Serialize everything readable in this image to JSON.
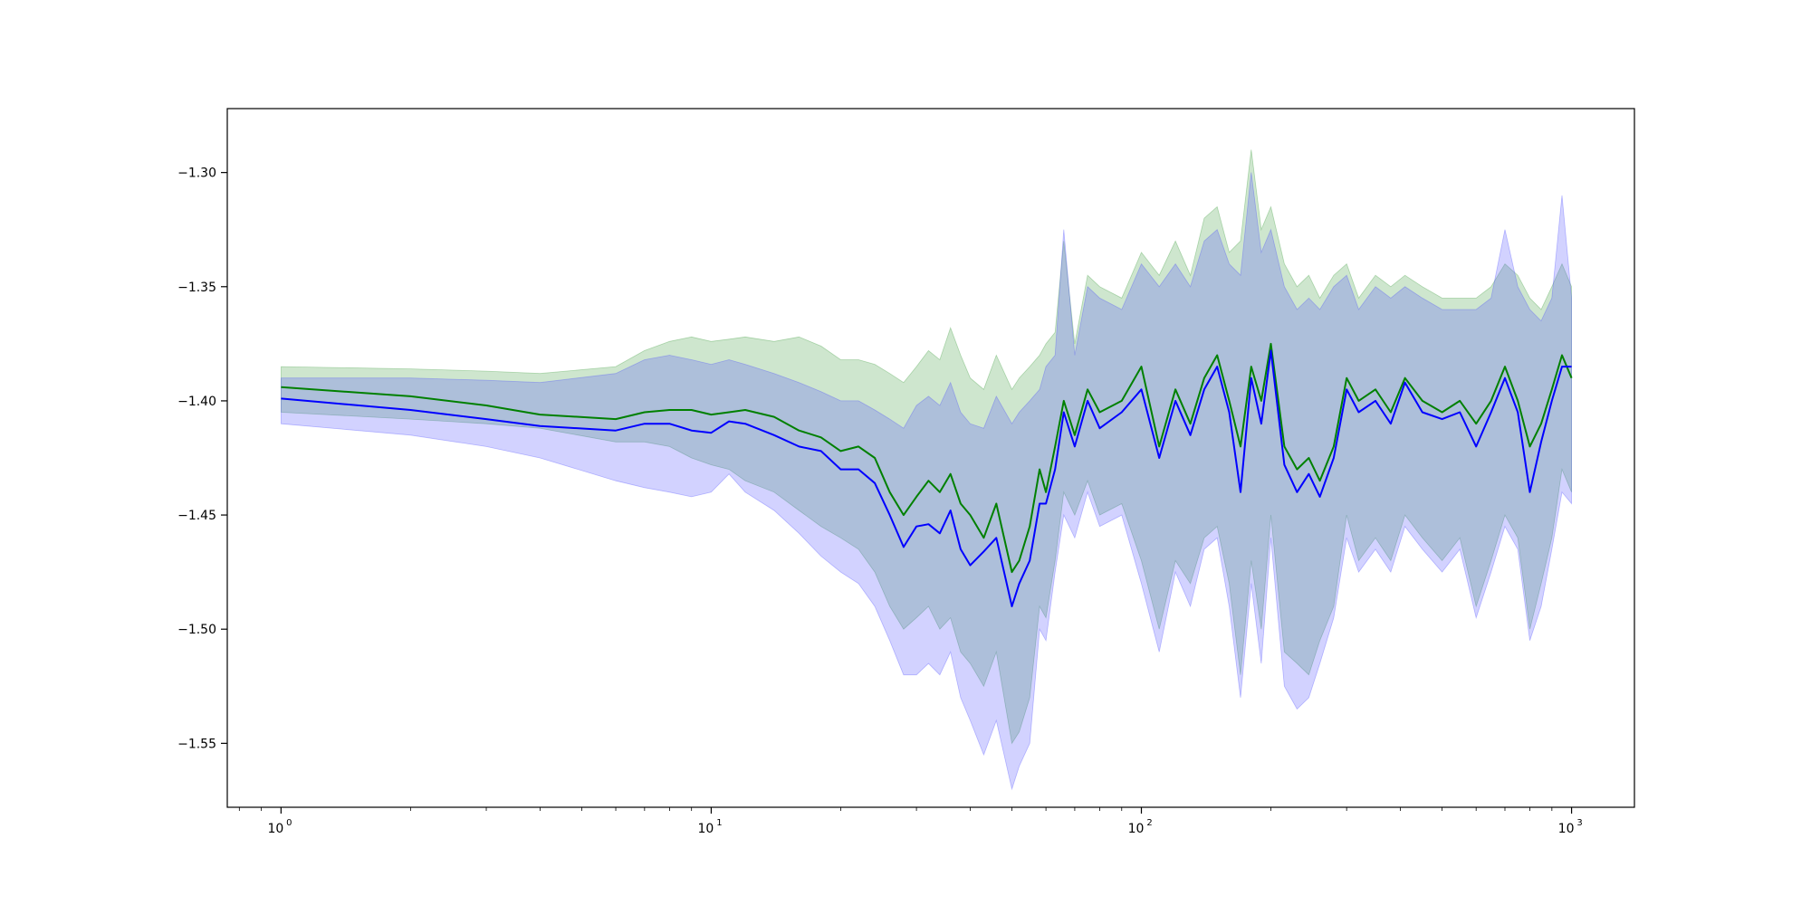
{
  "chart_data": {
    "type": "line",
    "title": "",
    "xlabel": "",
    "ylabel": "",
    "x_scale": "log",
    "xlim": [
      0.75,
      1400
    ],
    "ylim": [
      -1.578,
      -1.272
    ],
    "grid": false,
    "x_ticks": [
      {
        "value": 1,
        "base": "10",
        "exp": "0"
      },
      {
        "value": 10,
        "base": "10",
        "exp": "1"
      },
      {
        "value": 100,
        "base": "10",
        "exp": "2"
      },
      {
        "value": 1000,
        "base": "10",
        "exp": "3"
      }
    ],
    "y_ticks": [
      {
        "value": -1.3,
        "label": "−1.30"
      },
      {
        "value": -1.35,
        "label": "−1.35"
      },
      {
        "value": -1.4,
        "label": "−1.40"
      },
      {
        "value": -1.45,
        "label": "−1.45"
      },
      {
        "value": -1.5,
        "label": "−1.50"
      },
      {
        "value": -1.55,
        "label": "−1.55"
      }
    ],
    "colors": {
      "green_line": "#008000",
      "blue_line": "#0000ff",
      "green_band": "#3a9a3a",
      "blue_band": "#4a4aff"
    },
    "band_opacity": 0.25,
    "series": [
      {
        "color": "green",
        "x": [
          1,
          2,
          3,
          4,
          6,
          7,
          8,
          9,
          10,
          11,
          12,
          14,
          16,
          18,
          20,
          22,
          24,
          26,
          28,
          30,
          32,
          34,
          36,
          38,
          40,
          43,
          46,
          50,
          52,
          55,
          58,
          60,
          63,
          66,
          70,
          75,
          80,
          90,
          100,
          110,
          120,
          130,
          140,
          150,
          160,
          170,
          180,
          190,
          200,
          215,
          230,
          245,
          260,
          280,
          300,
          320,
          350,
          380,
          410,
          450,
          500,
          550,
          600,
          650,
          700,
          750,
          800,
          850,
          900,
          950,
          1000
        ],
        "y": [
          -1.394,
          -1.398,
          -1.402,
          -1.406,
          -1.408,
          -1.405,
          -1.404,
          -1.404,
          -1.406,
          -1.405,
          -1.404,
          -1.407,
          -1.413,
          -1.416,
          -1.422,
          -1.42,
          -1.425,
          -1.44,
          -1.45,
          -1.442,
          -1.435,
          -1.44,
          -1.432,
          -1.445,
          -1.45,
          -1.46,
          -1.445,
          -1.475,
          -1.47,
          -1.455,
          -1.43,
          -1.44,
          -1.42,
          -1.4,
          -1.415,
          -1.395,
          -1.405,
          -1.4,
          -1.385,
          -1.42,
          -1.395,
          -1.41,
          -1.39,
          -1.38,
          -1.4,
          -1.42,
          -1.385,
          -1.4,
          -1.375,
          -1.42,
          -1.43,
          -1.425,
          -1.435,
          -1.42,
          -1.39,
          -1.4,
          -1.395,
          -1.405,
          -1.39,
          -1.4,
          -1.405,
          -1.4,
          -1.41,
          -1.4,
          -1.385,
          -1.4,
          -1.42,
          -1.41,
          -1.395,
          -1.38,
          -1.39
        ],
        "lower": [
          -1.405,
          -1.408,
          -1.41,
          -1.412,
          -1.418,
          -1.418,
          -1.42,
          -1.425,
          -1.428,
          -1.43,
          -1.435,
          -1.44,
          -1.448,
          -1.455,
          -1.46,
          -1.465,
          -1.475,
          -1.49,
          -1.5,
          -1.495,
          -1.49,
          -1.5,
          -1.495,
          -1.51,
          -1.515,
          -1.525,
          -1.51,
          -1.55,
          -1.545,
          -1.53,
          -1.49,
          -1.495,
          -1.47,
          -1.44,
          -1.45,
          -1.435,
          -1.45,
          -1.445,
          -1.47,
          -1.5,
          -1.47,
          -1.48,
          -1.46,
          -1.455,
          -1.48,
          -1.52,
          -1.47,
          -1.5,
          -1.45,
          -1.51,
          -1.515,
          -1.52,
          -1.505,
          -1.49,
          -1.45,
          -1.47,
          -1.46,
          -1.47,
          -1.45,
          -1.46,
          -1.47,
          -1.46,
          -1.49,
          -1.47,
          -1.45,
          -1.46,
          -1.5,
          -1.48,
          -1.46,
          -1.43,
          -1.44
        ],
        "upper": [
          -1.385,
          -1.386,
          -1.387,
          -1.388,
          -1.385,
          -1.378,
          -1.374,
          -1.372,
          -1.374,
          -1.373,
          -1.372,
          -1.374,
          -1.372,
          -1.376,
          -1.382,
          -1.382,
          -1.384,
          -1.388,
          -1.392,
          -1.385,
          -1.378,
          -1.382,
          -1.368,
          -1.38,
          -1.39,
          -1.395,
          -1.38,
          -1.395,
          -1.39,
          -1.385,
          -1.38,
          -1.375,
          -1.37,
          -1.33,
          -1.375,
          -1.345,
          -1.35,
          -1.355,
          -1.335,
          -1.345,
          -1.33,
          -1.345,
          -1.32,
          -1.315,
          -1.335,
          -1.33,
          -1.29,
          -1.325,
          -1.315,
          -1.34,
          -1.35,
          -1.345,
          -1.355,
          -1.345,
          -1.34,
          -1.355,
          -1.345,
          -1.35,
          -1.345,
          -1.35,
          -1.355,
          -1.355,
          -1.355,
          -1.35,
          -1.34,
          -1.345,
          -1.355,
          -1.36,
          -1.35,
          -1.34,
          -1.35
        ]
      },
      {
        "color": "blue",
        "x": [
          1,
          2,
          3,
          4,
          6,
          7,
          8,
          9,
          10,
          11,
          12,
          14,
          16,
          18,
          20,
          22,
          24,
          26,
          28,
          30,
          32,
          34,
          36,
          38,
          40,
          43,
          46,
          50,
          52,
          55,
          58,
          60,
          63,
          66,
          70,
          75,
          80,
          90,
          100,
          110,
          120,
          130,
          140,
          150,
          160,
          170,
          180,
          190,
          200,
          215,
          230,
          245,
          260,
          280,
          300,
          320,
          350,
          380,
          410,
          450,
          500,
          550,
          600,
          650,
          700,
          750,
          800,
          850,
          900,
          950,
          1000
        ],
        "y": [
          -1.399,
          -1.404,
          -1.408,
          -1.411,
          -1.413,
          -1.41,
          -1.41,
          -1.413,
          -1.414,
          -1.409,
          -1.41,
          -1.415,
          -1.42,
          -1.422,
          -1.43,
          -1.43,
          -1.436,
          -1.45,
          -1.464,
          -1.455,
          -1.454,
          -1.458,
          -1.448,
          -1.465,
          -1.472,
          -1.466,
          -1.46,
          -1.49,
          -1.48,
          -1.47,
          -1.445,
          -1.445,
          -1.43,
          -1.405,
          -1.42,
          -1.4,
          -1.412,
          -1.405,
          -1.395,
          -1.425,
          -1.4,
          -1.415,
          -1.395,
          -1.385,
          -1.405,
          -1.44,
          -1.39,
          -1.41,
          -1.378,
          -1.428,
          -1.44,
          -1.432,
          -1.442,
          -1.425,
          -1.395,
          -1.405,
          -1.4,
          -1.41,
          -1.392,
          -1.405,
          -1.408,
          -1.405,
          -1.42,
          -1.405,
          -1.39,
          -1.405,
          -1.44,
          -1.418,
          -1.4,
          -1.385,
          -1.385
        ],
        "lower": [
          -1.41,
          -1.415,
          -1.42,
          -1.425,
          -1.435,
          -1.438,
          -1.44,
          -1.442,
          -1.44,
          -1.432,
          -1.44,
          -1.448,
          -1.458,
          -1.468,
          -1.475,
          -1.48,
          -1.49,
          -1.505,
          -1.52,
          -1.52,
          -1.515,
          -1.52,
          -1.51,
          -1.53,
          -1.54,
          -1.555,
          -1.54,
          -1.57,
          -1.56,
          -1.55,
          -1.5,
          -1.505,
          -1.475,
          -1.45,
          -1.46,
          -1.44,
          -1.455,
          -1.45,
          -1.48,
          -1.51,
          -1.475,
          -1.49,
          -1.465,
          -1.46,
          -1.49,
          -1.53,
          -1.48,
          -1.515,
          -1.46,
          -1.525,
          -1.535,
          -1.53,
          -1.515,
          -1.495,
          -1.46,
          -1.475,
          -1.465,
          -1.475,
          -1.455,
          -1.465,
          -1.475,
          -1.465,
          -1.495,
          -1.475,
          -1.455,
          -1.465,
          -1.505,
          -1.49,
          -1.465,
          -1.44,
          -1.445
        ],
        "upper": [
          -1.39,
          -1.39,
          -1.391,
          -1.392,
          -1.388,
          -1.382,
          -1.38,
          -1.382,
          -1.384,
          -1.382,
          -1.384,
          -1.388,
          -1.392,
          -1.396,
          -1.4,
          -1.4,
          -1.404,
          -1.408,
          -1.412,
          -1.402,
          -1.398,
          -1.402,
          -1.392,
          -1.405,
          -1.41,
          -1.412,
          -1.398,
          -1.41,
          -1.405,
          -1.4,
          -1.395,
          -1.385,
          -1.38,
          -1.325,
          -1.38,
          -1.35,
          -1.355,
          -1.36,
          -1.34,
          -1.35,
          -1.34,
          -1.35,
          -1.33,
          -1.325,
          -1.34,
          -1.345,
          -1.3,
          -1.335,
          -1.325,
          -1.35,
          -1.36,
          -1.355,
          -1.36,
          -1.35,
          -1.345,
          -1.36,
          -1.35,
          -1.355,
          -1.35,
          -1.355,
          -1.36,
          -1.36,
          -1.36,
          -1.355,
          -1.325,
          -1.35,
          -1.36,
          -1.365,
          -1.355,
          -1.31,
          -1.355
        ]
      }
    ]
  }
}
